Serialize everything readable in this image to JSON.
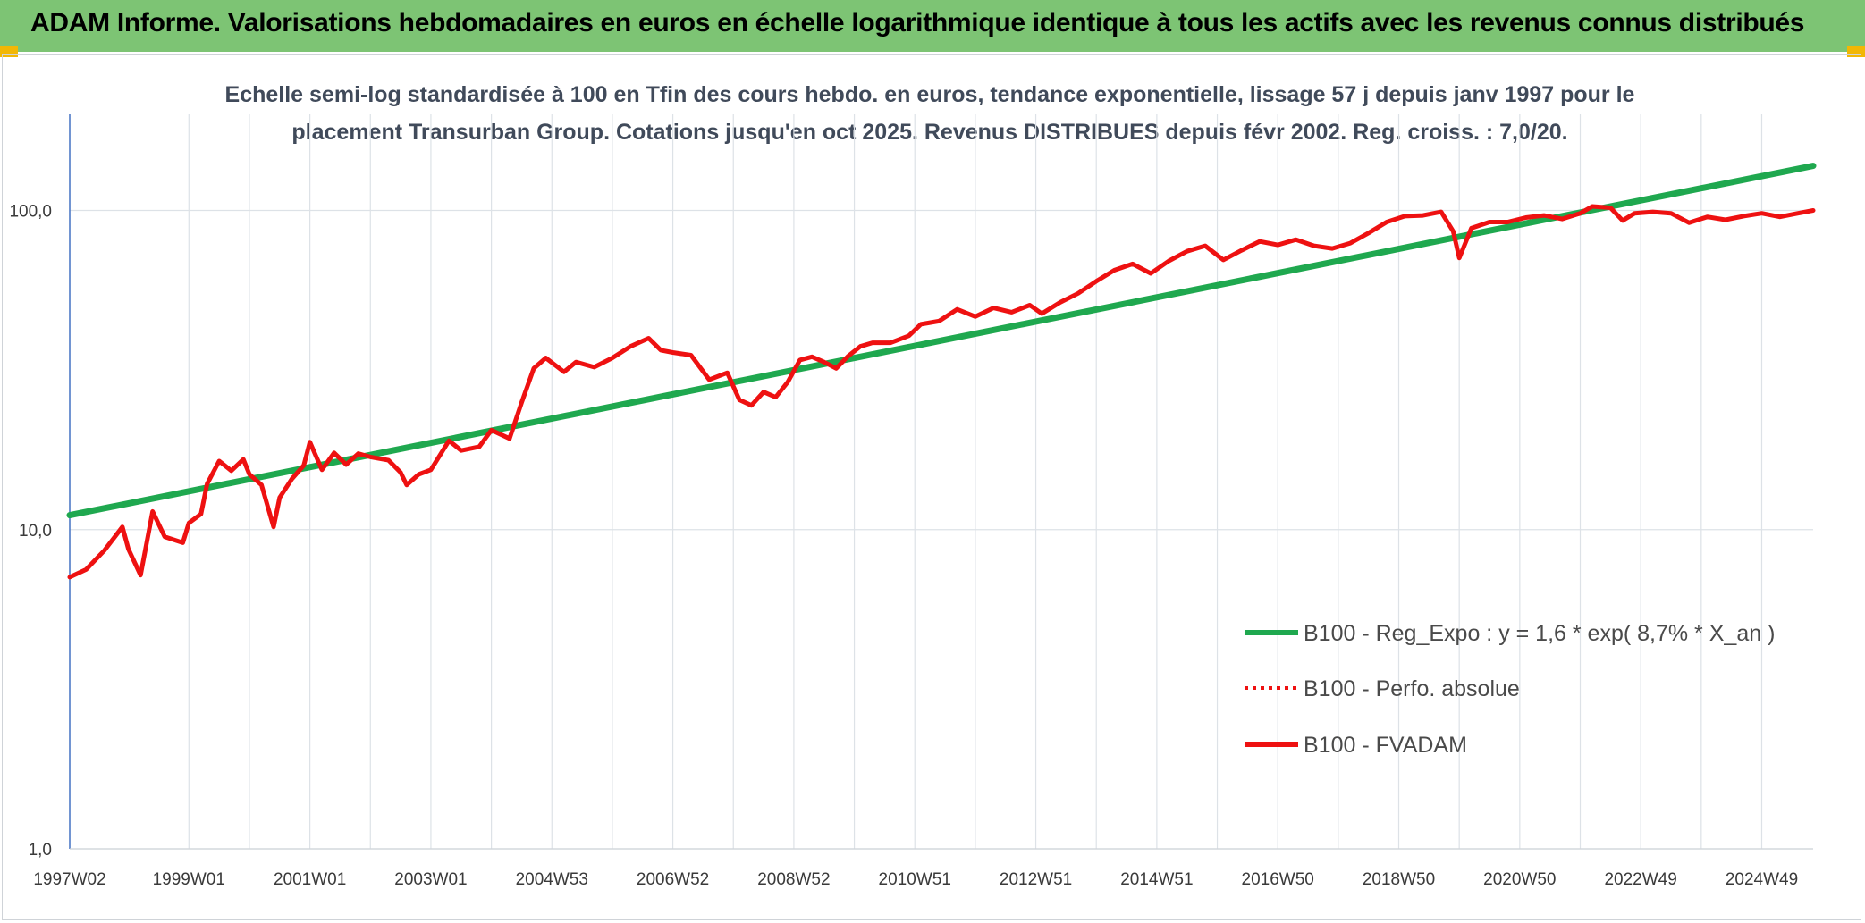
{
  "header": {
    "title": "ADAM Informe. Valorisations hebdomadaires en euros en échelle logarithmique identique à tous les actifs avec les revenus connus distribués"
  },
  "colors": {
    "banner": "#7dc474",
    "corner_accent": "#f2b705",
    "regression": "#1fa84f",
    "fvadam": "#ee1111",
    "perfo": "#ee1111"
  },
  "chart_data": {
    "type": "line",
    "title_lines": [
      "Echelle semi-log standardisée à 100 en Tfin des cours hebdo. en euros, tendance exponentielle, lissage 57 j depuis janv 1997 pour le",
      "placement Transurban Group. Cotations jusqu'en oct 2025. Revenus DISTRIBUES depuis févr 2002. Reg. croiss. : 7,0/20."
    ],
    "y_scale": "log",
    "ylim": [
      1,
      200
    ],
    "y_ticks": [
      "1,0",
      "10,0",
      "100,0"
    ],
    "y_tick_values": [
      1,
      10,
      100
    ],
    "xlim": [
      1997.03,
      2025.85
    ],
    "x_tick_labels": [
      "1997W02",
      "1999W01",
      "2001W01",
      "2003W01",
      "2004W53",
      "2006W52",
      "2008W52",
      "2010W51",
      "2012W51",
      "2014W51",
      "2016W50",
      "2018W50",
      "2020W50",
      "2022W49",
      "2024W49"
    ],
    "x_tick_values": [
      1997.03,
      1999.0,
      2001.0,
      2003.0,
      2005.0,
      2007.0,
      2009.0,
      2011.0,
      2013.0,
      2015.0,
      2017.0,
      2019.0,
      2021.0,
      2023.0,
      2025.0
    ],
    "grid": "vertical and horizontal gridlines",
    "legend_position": "right",
    "legend": [
      "B100 - Reg_Expo : y = 1,6 * exp( 8,7% *  X_an )",
      "B100 - Perfo. absolue",
      "B100 - FVADAM"
    ],
    "series": [
      {
        "name": "B100 - Reg_Expo : y = 1,6 * exp( 8,7% *  X_an )",
        "style": "solid",
        "x": [
          1997.03,
          2025.85
        ],
        "y": [
          11.1,
          138
        ]
      },
      {
        "name": "B100 - Perfo. absolue",
        "style": "dotted",
        "x": [],
        "y": []
      },
      {
        "name": "B100 - FVADAM",
        "style": "solid",
        "x": [
          1997.03,
          1997.3,
          1997.6,
          1997.9,
          1998.0,
          1998.2,
          1998.4,
          1998.6,
          1998.9,
          1999.0,
          1999.2,
          1999.3,
          1999.5,
          1999.7,
          1999.9,
          2000.0,
          2000.2,
          2000.4,
          2000.5,
          2000.7,
          2000.9,
          2001.0,
          2001.2,
          2001.4,
          2001.6,
          2001.8,
          2002.0,
          2002.3,
          2002.5,
          2002.6,
          2002.8,
          2003.0,
          2003.3,
          2003.5,
          2003.8,
          2004.0,
          2004.3,
          2004.5,
          2004.7,
          2004.9,
          2005.2,
          2005.4,
          2005.7,
          2006.0,
          2006.3,
          2006.6,
          2006.8,
          2007.0,
          2007.3,
          2007.6,
          2007.9,
          2008.1,
          2008.3,
          2008.5,
          2008.7,
          2008.9,
          2009.1,
          2009.3,
          2009.5,
          2009.7,
          2009.9,
          2010.1,
          2010.3,
          2010.6,
          2010.9,
          2011.1,
          2011.4,
          2011.7,
          2012.0,
          2012.3,
          2012.6,
          2012.9,
          2013.1,
          2013.4,
          2013.7,
          2014.0,
          2014.3,
          2014.6,
          2014.9,
          2015.2,
          2015.5,
          2015.8,
          2016.1,
          2016.4,
          2016.7,
          2017.0,
          2017.3,
          2017.6,
          2017.9,
          2018.2,
          2018.5,
          2018.8,
          2019.1,
          2019.4,
          2019.7,
          2019.9,
          2020.0,
          2020.2,
          2020.5,
          2020.8,
          2021.1,
          2021.4,
          2021.7,
          2022.0,
          2022.2,
          2022.5,
          2022.7,
          2022.9,
          2023.2,
          2023.5,
          2023.8,
          2024.1,
          2024.4,
          2024.7,
          2025.0,
          2025.3,
          2025.6,
          2025.85
        ],
        "y": [
          7.1,
          7.5,
          8.6,
          10.2,
          8.7,
          7.2,
          11.4,
          9.5,
          9.1,
          10.5,
          11.2,
          13.9,
          16.4,
          15.3,
          16.6,
          14.9,
          13.8,
          10.2,
          12.6,
          14.4,
          15.9,
          18.8,
          15.4,
          17.4,
          16.0,
          17.3,
          16.9,
          16.5,
          15.1,
          13.8,
          14.9,
          15.4,
          19.0,
          17.7,
          18.2,
          20.5,
          19.3,
          25.0,
          32.0,
          34.5,
          31.2,
          33.5,
          32.3,
          34.5,
          37.5,
          39.8,
          36.5,
          35.9,
          35.2,
          29.5,
          31.0,
          25.5,
          24.5,
          27.0,
          26.0,
          29.0,
          34.0,
          34.8,
          33.5,
          32.0,
          35.0,
          37.5,
          38.5,
          38.5,
          40.5,
          44.0,
          45.0,
          49.0,
          46.5,
          49.5,
          48.0,
          50.5,
          47.5,
          51.5,
          55.0,
          60.0,
          65.0,
          68.0,
          63.5,
          69.5,
          74.5,
          77.5,
          70.0,
          75.0,
          80.0,
          78.0,
          81.0,
          77.5,
          76.0,
          79.0,
          85.0,
          92.0,
          96.0,
          96.5,
          99.0,
          86.0,
          71.0,
          88.0,
          92.0,
          92.0,
          95.0,
          96.5,
          94.0,
          98.0,
          103.0,
          102.0,
          93.0,
          98.0,
          99.0,
          98.0,
          91.5,
          95.5,
          93.5,
          96.0,
          98.0,
          95.5,
          98.0,
          100.0
        ]
      }
    ]
  }
}
